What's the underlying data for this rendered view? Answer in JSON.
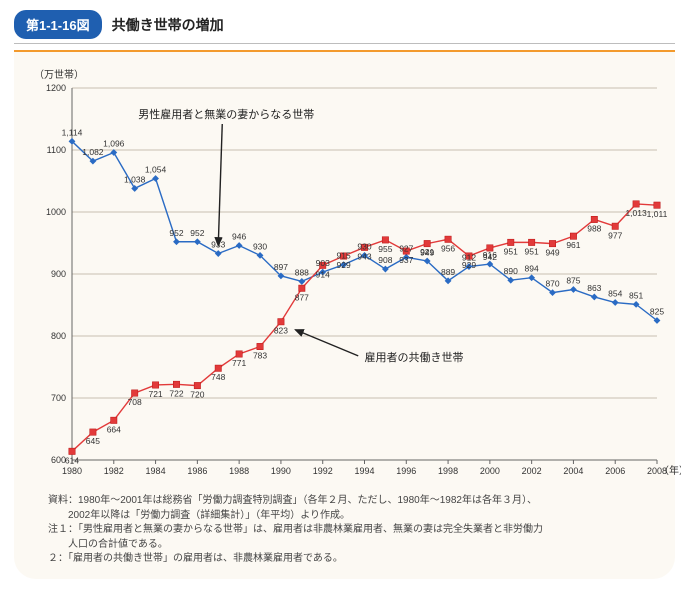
{
  "header": {
    "badge": "第1-1-16図",
    "title": "共働き世帯の増加"
  },
  "chart": {
    "type": "line",
    "y_unit_label": "（万世帯）",
    "x_unit_label": "（年）",
    "background_color": "#fcf9f3",
    "grid_color": "#c9c0b0",
    "ylim": [
      600,
      1200
    ],
    "ytick_step": 100,
    "x_start": 1980,
    "x_end": 2008,
    "xtick_step": 2,
    "annotations": {
      "series_a_label": "男性雇用者と無業の妻からなる世帯",
      "series_b_label": "雇用者の共働き世帯"
    },
    "series_a": {
      "name": "husband-employed-wife-not-employed",
      "color": "#2a6bc4",
      "marker": "diamond",
      "values": [
        1114,
        1082,
        1096,
        1038,
        1054,
        952,
        952,
        933,
        946,
        930,
        897,
        888,
        903,
        915,
        930,
        908,
        927,
        921,
        889,
        912,
        916,
        890,
        894,
        870,
        875,
        863,
        854,
        851,
        825
      ]
    },
    "series_b": {
      "name": "dual-earner",
      "color": "#e23a3a",
      "marker": "square",
      "values": [
        614,
        645,
        664,
        708,
        721,
        722,
        720,
        748,
        771,
        783,
        823,
        877,
        914,
        929,
        943,
        955,
        937,
        949,
        956,
        929,
        942,
        951,
        951,
        949,
        961,
        988,
        977,
        1013,
        1011
      ]
    }
  },
  "footnotes": {
    "source": "資料：1980年〜2001年は総務省「労働力調査特別調査」（各年２月、ただし、1980年〜1982年は各年３月）、",
    "source_cont": "2002年以降は「労働力調査（詳細集計）」（年平均）より作成。",
    "note1": "注１：「男性雇用者と無業の妻からなる世帯」は、雇用者は非農林業雇用者、無業の妻は完全失業者と非労働力",
    "note1_cont": "人口の合計値である。",
    "note2": "２：「雇用者の共働き世帯」の雇用者は、非農林業雇用者である。"
  }
}
